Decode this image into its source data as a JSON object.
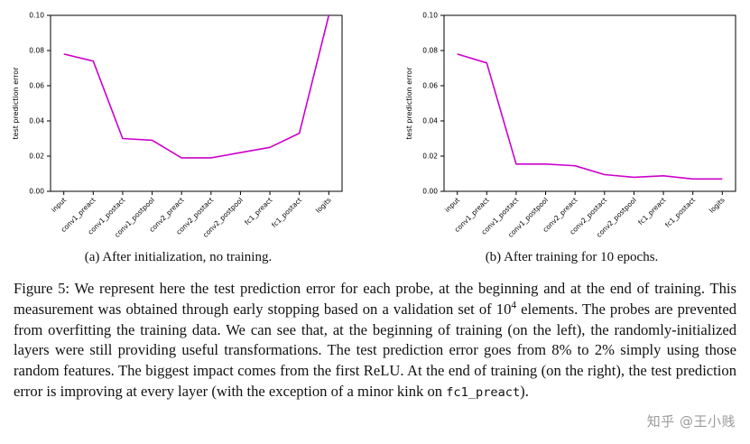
{
  "watermark": "知乎 @王小贱",
  "chart_data": [
    {
      "type": "line",
      "caption": "(a) After initialization, no training.",
      "ylabel": "test prediction error",
      "xlabel": "",
      "ylim": [
        0.0,
        0.1
      ],
      "yticks": [
        0.0,
        0.02,
        0.04,
        0.06,
        0.08,
        0.1
      ],
      "grid": false,
      "legend": "none",
      "line_color": "#cc00cc",
      "categories": [
        "input",
        "conv1_preact",
        "conv1_postact",
        "conv1_postpool",
        "conv2_preact",
        "conv2_postact",
        "conv2_postpool",
        "fc1_preact",
        "fc1_postact",
        "logits"
      ],
      "values": [
        0.078,
        0.074,
        0.03,
        0.029,
        0.019,
        0.019,
        0.022,
        0.025,
        0.033,
        0.1
      ]
    },
    {
      "type": "line",
      "caption": "(b) After training for 10 epochs.",
      "ylabel": "test prediction error",
      "xlabel": "",
      "ylim": [
        0.0,
        0.1
      ],
      "yticks": [
        0.0,
        0.02,
        0.04,
        0.06,
        0.08,
        0.1
      ],
      "grid": false,
      "legend": "none",
      "line_color": "#cc00cc",
      "categories": [
        "input",
        "conv1_preact",
        "conv1_postact",
        "conv1_postpool",
        "conv2_preact",
        "conv2_postact",
        "conv2_postpool",
        "fc1_preact",
        "fc1_postact",
        "logits"
      ],
      "values": [
        0.078,
        0.073,
        0.0155,
        0.0155,
        0.0145,
        0.0095,
        0.008,
        0.0088,
        0.007,
        0.007
      ]
    }
  ],
  "figure_caption": {
    "segments": [
      {
        "style": "normal",
        "text": "Figure 5: We represent here the test prediction error for each probe, at the beginning and at the end of training. This measurement was obtained through early stopping based on a validation set of 10"
      },
      {
        "style": "sup",
        "text": "4"
      },
      {
        "style": "normal",
        "text": " elements. The probes are prevented from overfitting the training data. We can see that, at the beginning of training (on the left), the randomly-initialized layers were still providing useful transformations. The test prediction error goes from 8% to 2% simply using those random features. The biggest impact comes from the first ReLU. At the end of training (on the right), the test prediction error is improving at every layer (with the exception of a minor kink on "
      },
      {
        "style": "mono",
        "text": "fc1_preact"
      },
      {
        "style": "normal",
        "text": ")."
      }
    ]
  }
}
